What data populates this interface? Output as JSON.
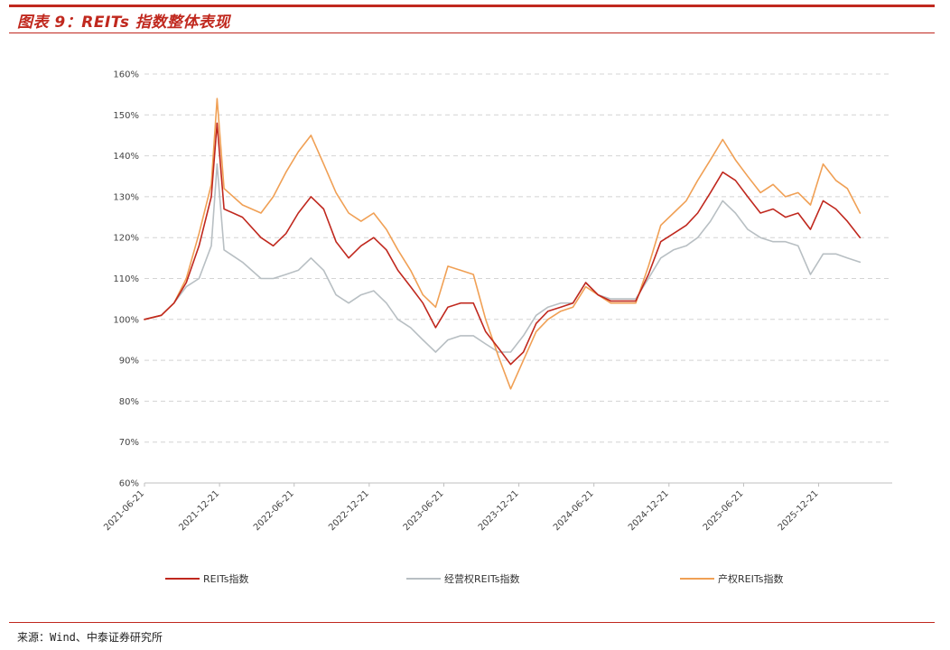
{
  "header": {
    "title": "图表 9：REITs 指数整体表现"
  },
  "footer": {
    "source": "来源：Wind、中泰证券研究所"
  },
  "chart_data": {
    "type": "line",
    "title": "图表 9：REITs 指数整体表现",
    "xlabel": "",
    "ylabel": "",
    "ylim": [
      60,
      160
    ],
    "y_ticks": [
      60,
      70,
      80,
      90,
      100,
      110,
      120,
      130,
      140,
      150,
      160
    ],
    "y_tick_labels": [
      "60%",
      "70%",
      "80%",
      "90%",
      "100%",
      "110%",
      "120%",
      "130%",
      "140%",
      "150%",
      "160%"
    ],
    "x_tick_labels": [
      "2021-06-21",
      "2021-12-21",
      "2022-06-21",
      "2022-12-21",
      "2023-06-21",
      "2023-12-21",
      "2024-06-21",
      "2024-12-21",
      "2025-06-21",
      "2025-12-21"
    ],
    "grid": true,
    "legend_position": "bottom",
    "x": [
      "2021-06-21",
      "2021-08-01",
      "2021-09-01",
      "2021-10-01",
      "2021-11-01",
      "2021-12-01",
      "2021-12-15",
      "2022-01-01",
      "2022-02-15",
      "2022-04-01",
      "2022-05-01",
      "2022-06-01",
      "2022-07-01",
      "2022-08-01",
      "2022-09-01",
      "2022-10-01",
      "2022-11-01",
      "2022-12-01",
      "2023-01-01",
      "2023-02-01",
      "2023-03-01",
      "2023-04-01",
      "2023-05-01",
      "2023-06-01",
      "2023-07-01",
      "2023-08-01",
      "2023-09-01",
      "2023-10-01",
      "2023-11-01",
      "2023-12-01",
      "2024-01-01",
      "2024-02-01",
      "2024-03-01",
      "2024-04-01",
      "2024-05-01",
      "2024-06-01",
      "2024-07-01",
      "2024-08-01",
      "2024-09-01",
      "2024-10-01",
      "2024-11-01",
      "2024-12-01",
      "2025-01-01",
      "2025-02-01",
      "2025-03-01",
      "2025-04-01",
      "2025-05-01",
      "2025-06-01",
      "2025-07-01",
      "2025-08-01",
      "2025-09-01",
      "2025-10-01",
      "2025-11-01",
      "2025-12-01",
      "2026-01-01",
      "2026-02-01",
      "2026-03-01",
      "2026-04-01"
    ],
    "series": [
      {
        "name": "REITs指数",
        "color": "#c0281e",
        "values": [
          100,
          101,
          104,
          109,
          118,
          130,
          148,
          127,
          125,
          120,
          118,
          121,
          126,
          130,
          127,
          119,
          115,
          118,
          120,
          117,
          112,
          108,
          104,
          98,
          103,
          104,
          104,
          97,
          93,
          89,
          92,
          99,
          102,
          103,
          104,
          109,
          106,
          104.5,
          104.5,
          104.5,
          111,
          119,
          121,
          123,
          126,
          131,
          136,
          134,
          130,
          126,
          127,
          125,
          126,
          122,
          129,
          127,
          124,
          120
        ]
      },
      {
        "name": "经营权REITs指数",
        "color": "#b8bfc3",
        "values": [
          100,
          101,
          104,
          108,
          110,
          118,
          138,
          117,
          114,
          110,
          110,
          111,
          112,
          115,
          112,
          106,
          104,
          106,
          107,
          104,
          100,
          98,
          95,
          92,
          95,
          96,
          96,
          94,
          92,
          92,
          96,
          101,
          103,
          104,
          104,
          109,
          106,
          105,
          105,
          105,
          110,
          115,
          117,
          118,
          120,
          124,
          129,
          126,
          122,
          120,
          119,
          119,
          118,
          111,
          116,
          116,
          115,
          114
        ]
      },
      {
        "name": "产权REITs指数",
        "color": "#f0a055",
        "values": [
          100,
          101,
          104,
          110,
          121,
          133,
          154,
          132,
          128,
          126,
          130,
          136,
          141,
          145,
          138,
          131,
          126,
          124,
          126,
          122,
          117,
          112,
          106,
          103,
          113,
          112,
          111,
          100,
          91,
          83,
          90,
          97,
          100,
          102,
          103,
          108,
          106,
          104,
          104,
          104,
          113,
          123,
          126,
          129,
          134,
          139,
          144,
          139,
          135,
          131,
          133,
          130,
          131,
          128,
          138,
          134,
          132,
          126
        ]
      }
    ]
  }
}
